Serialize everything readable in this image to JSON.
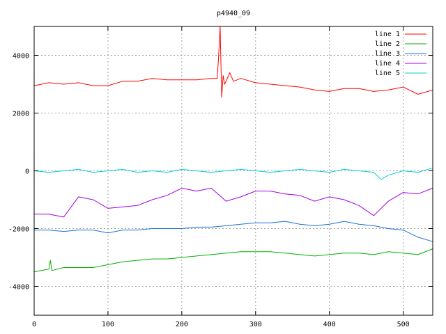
{
  "chart_data": {
    "type": "line",
    "title": "p4940_09",
    "xlabel": "",
    "ylabel": "",
    "xlim": [
      0,
      540
    ],
    "ylim": [
      -5000,
      5000
    ],
    "xticks": [
      0,
      100,
      200,
      300,
      400,
      500
    ],
    "yticks": [
      -4000,
      -2000,
      0,
      2000,
      4000
    ],
    "grid": true,
    "legend_position": "top-right",
    "series": [
      {
        "name": "line 1",
        "color": "#ff0000",
        "x": [
          0,
          20,
          40,
          60,
          80,
          100,
          120,
          140,
          160,
          180,
          200,
          220,
          240,
          248,
          250,
          252,
          254,
          256,
          258,
          260,
          265,
          270,
          280,
          300,
          320,
          340,
          360,
          380,
          400,
          420,
          440,
          460,
          480,
          500,
          520,
          540
        ],
        "y": [
          2950,
          3050,
          3000,
          3050,
          2950,
          2950,
          3100,
          3100,
          3200,
          3150,
          3150,
          3150,
          3200,
          3200,
          4000,
          5000,
          2550,
          3300,
          3000,
          3100,
          3400,
          3100,
          3200,
          3050,
          3000,
          2950,
          2900,
          2800,
          2750,
          2850,
          2850,
          2750,
          2800,
          2900,
          2650,
          2800
        ]
      },
      {
        "name": "line 2",
        "color": "#00b000",
        "x": [
          0,
          20,
          22,
          24,
          40,
          60,
          80,
          100,
          120,
          140,
          160,
          180,
          200,
          220,
          240,
          260,
          280,
          300,
          320,
          340,
          360,
          380,
          400,
          420,
          440,
          460,
          480,
          500,
          520,
          540
        ],
        "y": [
          -3500,
          -3400,
          -3100,
          -3450,
          -3350,
          -3350,
          -3350,
          -3250,
          -3150,
          -3100,
          -3050,
          -3050,
          -3000,
          -2950,
          -2900,
          -2850,
          -2800,
          -2800,
          -2800,
          -2850,
          -2900,
          -2950,
          -2900,
          -2850,
          -2850,
          -2900,
          -2800,
          -2850,
          -2900,
          -2700
        ]
      },
      {
        "name": "line 3",
        "color": "#1a6fd8",
        "x": [
          0,
          20,
          40,
          60,
          80,
          100,
          120,
          140,
          160,
          180,
          200,
          220,
          240,
          260,
          280,
          300,
          320,
          340,
          360,
          380,
          400,
          420,
          440,
          460,
          480,
          500,
          520,
          540
        ],
        "y": [
          -2050,
          -2050,
          -2100,
          -2050,
          -2050,
          -2150,
          -2050,
          -2050,
          -2000,
          -2000,
          -2000,
          -1950,
          -1950,
          -1900,
          -1850,
          -1800,
          -1800,
          -1750,
          -1850,
          -1900,
          -1850,
          -1750,
          -1850,
          -1900,
          -2000,
          -2050,
          -2300,
          -2450
        ]
      },
      {
        "name": "line 4",
        "color": "#a000e0",
        "x": [
          0,
          20,
          40,
          60,
          80,
          100,
          120,
          140,
          160,
          180,
          200,
          220,
          240,
          260,
          280,
          300,
          320,
          340,
          360,
          380,
          400,
          420,
          440,
          460,
          480,
          500,
          520,
          540
        ],
        "y": [
          -1500,
          -1500,
          -1600,
          -900,
          -1000,
          -1300,
          -1250,
          -1200,
          -1000,
          -850,
          -600,
          -700,
          -600,
          -1050,
          -900,
          -700,
          -700,
          -800,
          -850,
          -1050,
          -900,
          -1000,
          -1200,
          -1550,
          -1050,
          -750,
          -800,
          -600
        ]
      },
      {
        "name": "line 5",
        "color": "#00d0d0",
        "x": [
          0,
          20,
          40,
          60,
          80,
          100,
          120,
          140,
          160,
          180,
          200,
          220,
          240,
          260,
          280,
          300,
          320,
          340,
          360,
          380,
          400,
          420,
          440,
          460,
          470,
          480,
          500,
          520,
          540
        ],
        "y": [
          0,
          -50,
          0,
          50,
          -50,
          0,
          50,
          -50,
          0,
          -50,
          50,
          0,
          -50,
          0,
          50,
          0,
          -50,
          0,
          50,
          0,
          -50,
          50,
          0,
          -50,
          -300,
          -150,
          0,
          -50,
          100
        ]
      }
    ]
  }
}
